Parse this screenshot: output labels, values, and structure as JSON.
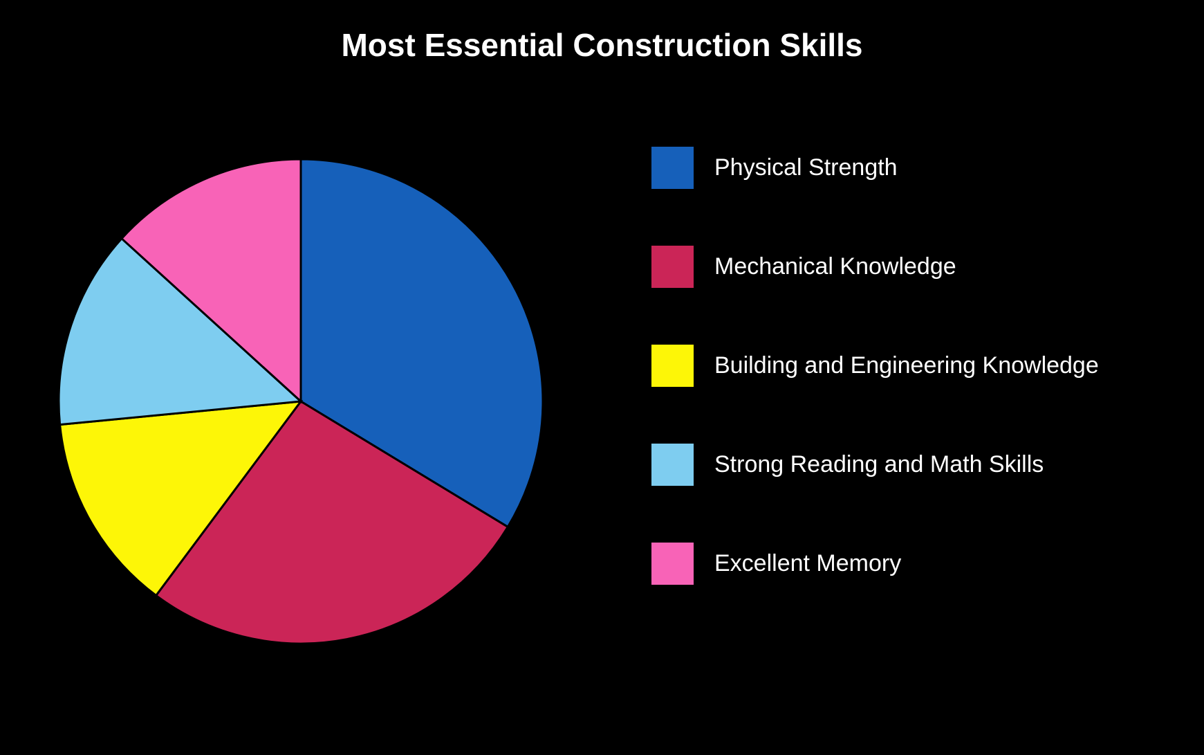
{
  "chart": {
    "type": "pie",
    "title": "Most Essential Construction Skills",
    "title_fontsize": 46,
    "title_color": "#ffffff",
    "background_color": "#000000",
    "radius": 350,
    "stroke_color": "#000000",
    "stroke_width": 3,
    "slices": [
      {
        "label": "Physical Strength",
        "value": 33,
        "color": "#1660ba"
      },
      {
        "label": "Mechanical Knowledge",
        "value": 26,
        "color": "#cb2557"
      },
      {
        "label": "Building and Engineering Knowledge",
        "value": 13,
        "color": "#fdf607"
      },
      {
        "label": "Strong Reading and Math Skills",
        "value": 13,
        "color": "#7ecdf0"
      },
      {
        "label": "Excellent Memory",
        "value": 13,
        "color": "#f863b7"
      }
    ],
    "legend": {
      "swatch_size": 65,
      "label_fontsize": 34,
      "label_color": "#ffffff",
      "item_gap": 78
    }
  }
}
